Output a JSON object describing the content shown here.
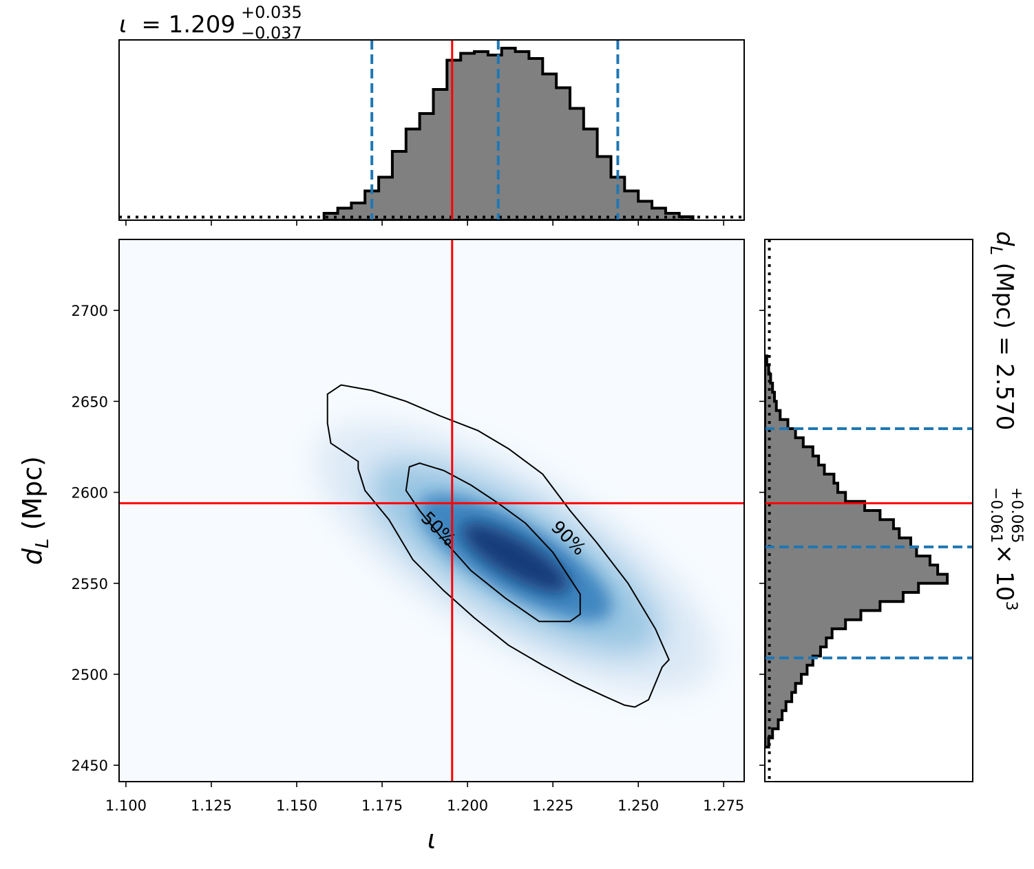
{
  "chart_data": {
    "type": "corner",
    "panels": [
      {
        "id": "iota-marginal",
        "type": "histogram",
        "title": {
          "symbol": "ι",
          "text": "= 1.209",
          "sup": "+0.035",
          "sub": "−0.037"
        },
        "xlim": [
          1.098,
          1.281
        ],
        "bins_left": [
          1.158,
          1.162,
          1.166,
          1.17,
          1.174,
          1.178,
          1.182,
          1.186,
          1.19,
          1.194,
          1.198,
          1.202,
          1.206,
          1.21,
          1.214,
          1.218,
          1.222,
          1.226,
          1.23,
          1.234,
          1.238,
          1.242,
          1.246,
          1.25,
          1.254,
          1.258,
          1.262
        ],
        "bin_width": 0.004,
        "heights": [
          0.04,
          0.07,
          0.1,
          0.17,
          0.25,
          0.4,
          0.53,
          0.62,
          0.76,
          0.93,
          0.97,
          0.98,
          0.96,
          1.0,
          0.98,
          0.94,
          0.85,
          0.77,
          0.65,
          0.53,
          0.37,
          0.25,
          0.17,
          0.11,
          0.07,
          0.04,
          0.02
        ],
        "quantile_lines": [
          1.172,
          1.209,
          1.244
        ],
        "truth": 1.1955,
        "prior_level": 0.01
      },
      {
        "id": "joint-density",
        "type": "heatmap",
        "colormap": "Blues",
        "xlim": [
          1.098,
          1.281
        ],
        "ylim": [
          2441,
          2739
        ],
        "xticks": [
          "1.100",
          "1.125",
          "1.150",
          "1.175",
          "1.200",
          "1.225",
          "1.250",
          "1.275"
        ],
        "xtick_values": [
          1.1,
          1.125,
          1.15,
          1.175,
          1.2,
          1.225,
          1.25,
          1.275
        ],
        "yticks": [
          "2450",
          "2500",
          "2550",
          "2600",
          "2650",
          "2700"
        ],
        "ytick_values": [
          2450,
          2500,
          2550,
          2600,
          2650,
          2700
        ],
        "xlabel": "ι",
        "ylabel": {
          "main": "d",
          "sub": "L",
          "unit": " (Mpc)"
        },
        "peak": {
          "x": 1.214,
          "y": 2564
        },
        "correlation_slope": -1100,
        "contours": [
          {
            "level": "90%",
            "label": "90%",
            "label_at": [
              1.2296,
              2575
            ],
            "points": [
              [
                1.159,
                2654
              ],
              [
                1.163,
                2659
              ],
              [
                1.172,
                2656
              ],
              [
                1.182,
                2650
              ],
              [
                1.192,
                2642
              ],
              [
                1.203,
                2634
              ],
              [
                1.212,
                2624
              ],
              [
                1.222,
                2610
              ],
              [
                1.23,
                2590
              ],
              [
                1.238,
                2572
              ],
              [
                1.247,
                2550
              ],
              [
                1.255,
                2525
              ],
              [
                1.259,
                2508
              ],
              [
                1.257,
                2504
              ],
              [
                1.253,
                2486
              ],
              [
                1.249,
                2482
              ],
              [
                1.246,
                2483
              ],
              [
                1.24,
                2488
              ],
              [
                1.232,
                2495
              ],
              [
                1.222,
                2505
              ],
              [
                1.212,
                2516
              ],
              [
                1.202,
                2531
              ],
              [
                1.193,
                2546
              ],
              [
                1.184,
                2563
              ],
              [
                1.177,
                2585
              ],
              [
                1.17,
                2601
              ],
              [
                1.168,
                2613
              ],
              [
                1.168,
                2617
              ],
              [
                1.16,
                2627
              ],
              [
                1.159,
                2638
              ],
              [
                1.159,
                2654
              ]
            ]
          },
          {
            "level": "50%",
            "label": "50%",
            "label_at": [
              1.1915,
              2580
            ],
            "points": [
              [
                1.183,
                2614
              ],
              [
                1.186,
                2616
              ],
              [
                1.193,
                2612
              ],
              [
                1.201,
                2604
              ],
              [
                1.209,
                2594
              ],
              [
                1.217,
                2583
              ],
              [
                1.225,
                2567
              ],
              [
                1.233,
                2544
              ],
              [
                1.233,
                2533
              ],
              [
                1.23,
                2529
              ],
              [
                1.221,
                2529
              ],
              [
                1.211,
                2542
              ],
              [
                1.201,
                2557
              ],
              [
                1.192,
                2576
              ],
              [
                1.186,
                2590
              ],
              [
                1.182,
                2601
              ],
              [
                1.183,
                2614
              ]
            ]
          }
        ],
        "truth": {
          "x": 1.1955,
          "y": 2594
        }
      },
      {
        "id": "dl-marginal",
        "type": "histogram",
        "orientation": "horizontal",
        "title": {
          "main": "d",
          "sub": "L",
          "text": " (Mpc) = 2.570",
          "sup": "+0.065",
          "sub2": "−0.061",
          "tail": " × 10",
          "exp": "3"
        },
        "ylim": [
          2441,
          2739
        ],
        "bins_low": [
          2460,
          2465,
          2470,
          2475,
          2480,
          2485,
          2490,
          2495,
          2500,
          2505,
          2510,
          2515,
          2520,
          2525,
          2530,
          2535,
          2540,
          2545,
          2550,
          2555,
          2560,
          2565,
          2570,
          2575,
          2580,
          2585,
          2590,
          2595,
          2600,
          2605,
          2610,
          2615,
          2620,
          2625,
          2630,
          2635,
          2640,
          2645,
          2650,
          2655,
          2660,
          2665,
          2670
        ],
        "bin_width": 5,
        "widths": [
          0.02,
          0.04,
          0.07,
          0.09,
          0.11,
          0.14,
          0.16,
          0.19,
          0.22,
          0.25,
          0.29,
          0.32,
          0.35,
          0.42,
          0.5,
          0.6,
          0.72,
          0.8,
          0.95,
          0.9,
          0.86,
          0.79,
          0.76,
          0.7,
          0.67,
          0.6,
          0.52,
          0.42,
          0.38,
          0.36,
          0.31,
          0.28,
          0.25,
          0.2,
          0.16,
          0.12,
          0.08,
          0.06,
          0.05,
          0.04,
          0.03,
          0.02,
          0.01
        ],
        "quantile_lines": [
          2509,
          2570,
          2635
        ],
        "truth": 2594,
        "prior_level": 0.02
      }
    ],
    "colors": {
      "hist_fill": "#808080",
      "hist_edge": "#000000",
      "quantile": "#1f77b4",
      "truth": "#ff0000",
      "contour": "#000000"
    }
  }
}
